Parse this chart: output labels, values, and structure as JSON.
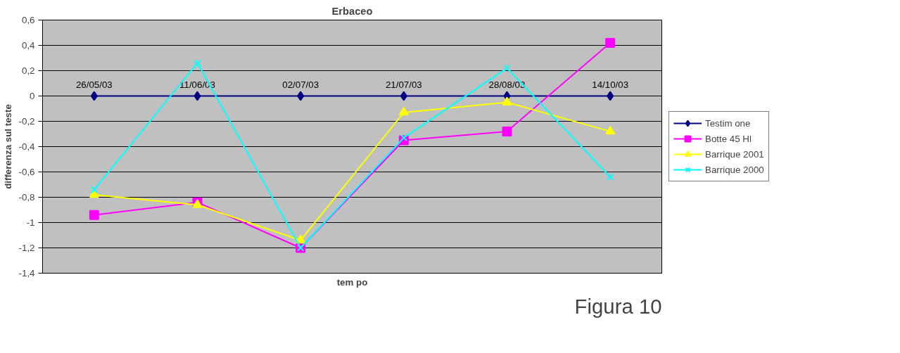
{
  "chart_data": {
    "type": "line",
    "title": "Erbaceo",
    "xlabel": "tem po",
    "ylabel": "differenza sul teste",
    "categories": [
      "26/05/03",
      "11/06/03",
      "02/07/03",
      "21/07/03",
      "28/08/03",
      "14/10/03"
    ],
    "series": [
      {
        "name": "Testim one",
        "color": "#000080",
        "marker": "diamond",
        "values": [
          0,
          0,
          0,
          0,
          0,
          0
        ]
      },
      {
        "name": "Botte 45 Hl",
        "color": "#ff00ff",
        "marker": "square",
        "values": [
          -0.94,
          -0.84,
          -1.2,
          -0.35,
          -0.28,
          0.42
        ]
      },
      {
        "name": "Barrique 2001",
        "color": "#ffff00",
        "marker": "triangle",
        "values": [
          -0.78,
          -0.86,
          -1.14,
          -0.13,
          -0.05,
          -0.28
        ]
      },
      {
        "name": "Barrique 2000",
        "color": "#00ffff",
        "marker": "cross",
        "values": [
          -0.74,
          0.26,
          -1.2,
          -0.33,
          0.22,
          -0.64
        ]
      }
    ],
    "ylim": [
      -1.4,
      0.6
    ],
    "yticks": [
      {
        "value": -1.4,
        "label": "-1,4"
      },
      {
        "value": -1.2,
        "label": "-1,2"
      },
      {
        "value": -1,
        "label": "-1"
      },
      {
        "value": -0.8,
        "label": "-0,8"
      },
      {
        "value": -0.6,
        "label": "-0,6"
      },
      {
        "value": -0.4,
        "label": "-0,4"
      },
      {
        "value": -0.2,
        "label": "-0,2"
      },
      {
        "value": 0,
        "label": "0"
      },
      {
        "value": 0.2,
        "label": "0,2"
      },
      {
        "value": 0.4,
        "label": "0,4"
      },
      {
        "value": 0.6,
        "label": "0,6"
      }
    ],
    "grid": "y",
    "legend": "right",
    "line_style": "solid",
    "annotations": [
      "Figura 10"
    ]
  }
}
